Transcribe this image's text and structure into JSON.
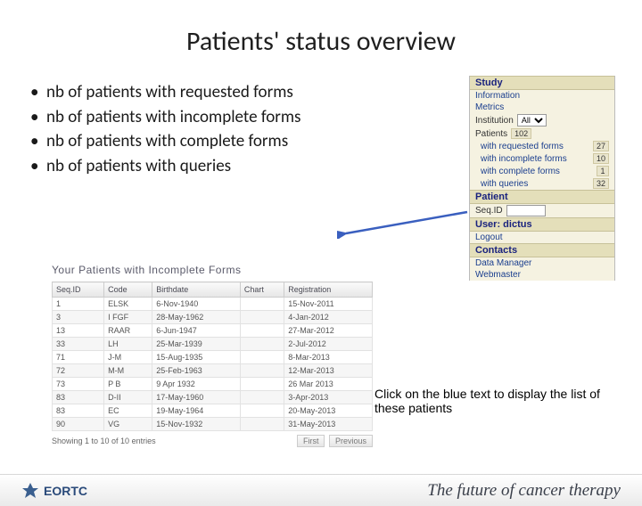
{
  "title": "Patients' status overview",
  "bullets": [
    "nb of patients with requested forms",
    "nb of patients with incomplete forms",
    "nb of patients with complete forms",
    "nb of patients with queries"
  ],
  "sidePanel": {
    "sections": {
      "study": {
        "header": "Study",
        "info_link": "Information",
        "metrics_link": "Metrics",
        "institution_label": "Institution",
        "institution_value": "All",
        "patients_label": "Patients",
        "patients_count": "102",
        "stats": [
          {
            "label": "with requested forms",
            "value": "27"
          },
          {
            "label": "with incomplete forms",
            "value": "10"
          },
          {
            "label": "with complete forms",
            "value": "1"
          },
          {
            "label": "with queries",
            "value": "32"
          }
        ]
      },
      "patient": {
        "header": "Patient",
        "seqid_label": "Seq.ID"
      },
      "user": {
        "header": "User: dictus",
        "logout_link": "Logout"
      },
      "contacts": {
        "header": "Contacts",
        "links": [
          "Data Manager",
          "Webmaster"
        ]
      }
    }
  },
  "table": {
    "title": "Your Patients with Incomplete Forms",
    "columns": [
      "Seq.ID",
      "Code",
      "Birthdate",
      "Chart",
      "Registration"
    ],
    "rows": [
      [
        "1",
        "ELSK",
        "6-Nov-1940",
        "",
        "15-Nov-2011"
      ],
      [
        "3",
        "I FGF",
        "28-May-1962",
        "",
        "4-Jan-2012"
      ],
      [
        "13",
        "RAAR",
        "6-Jun-1947",
        "",
        "27-Mar-2012"
      ],
      [
        "33",
        "LH",
        "25-Mar-1939",
        "",
        "2-Jul-2012"
      ],
      [
        "71",
        "J-M",
        "15-Aug-1935",
        "",
        "8-Mar-2013"
      ],
      [
        "72",
        "M-M",
        "25-Feb-1963",
        "",
        "12-Mar-2013"
      ],
      [
        "73",
        "P B",
        "9 Apr 1932",
        "",
        "26 Mar 2013"
      ],
      [
        "83",
        "D-II",
        "17-May-1960",
        "",
        "3-Apr-2013"
      ],
      [
        "83",
        "EC",
        "19-May-1964",
        "",
        "20-May-2013"
      ],
      [
        "90",
        "VG",
        "15-Nov-1932",
        "",
        "31-May-2013"
      ]
    ],
    "footer_text": "Showing 1 to 10 of 10 entries",
    "pager": {
      "first": "First",
      "prev": "Previous"
    }
  },
  "callout": "Click on the blue text to display the list of these patients",
  "footer": {
    "logo_text": "EORTC",
    "tagline": "The future of cancer therapy"
  },
  "colors": {
    "panel_bg": "#f5f2e1",
    "panel_header_bg": "#e4dfba",
    "link_color": "#1a3e8e",
    "arrow_color": "#3a5fbf"
  }
}
